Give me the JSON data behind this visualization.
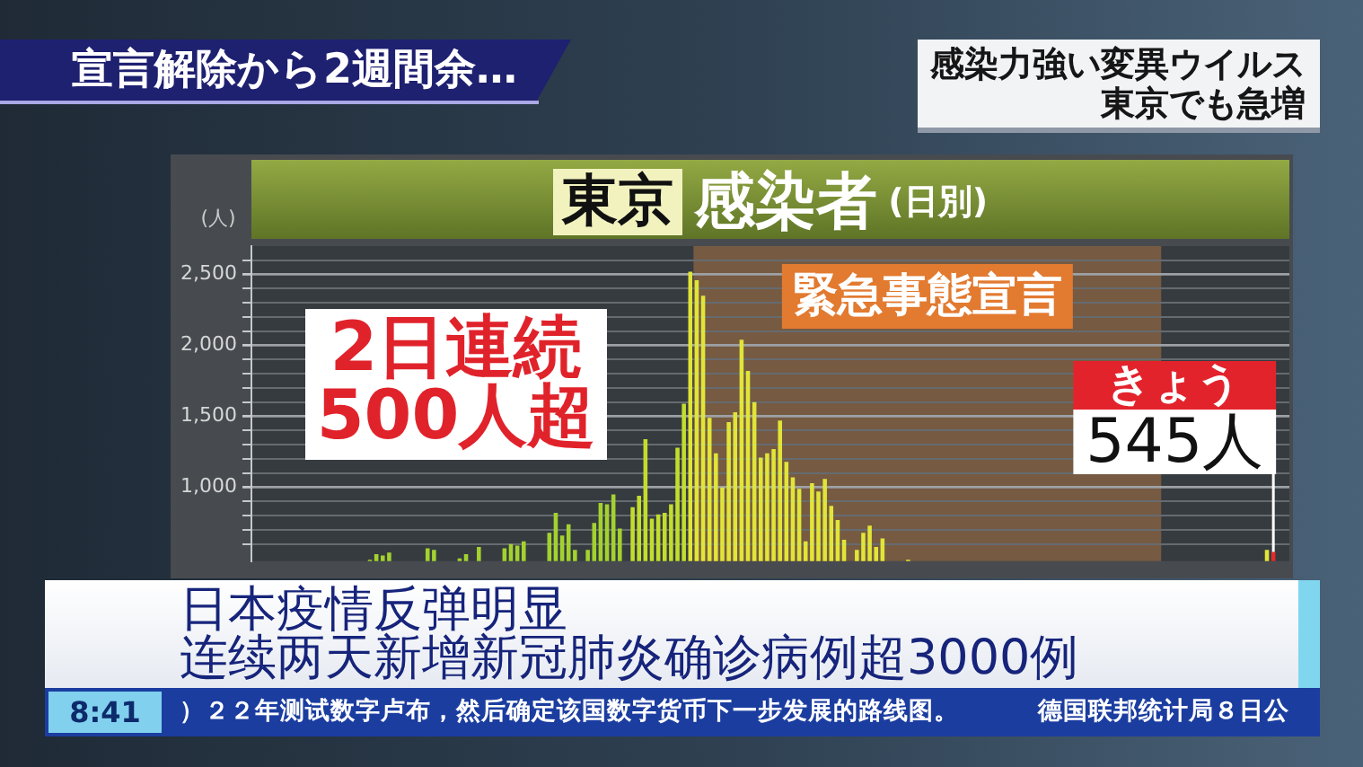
{
  "chart_data": {
    "type": "bar",
    "title": "東京 感染者 (日別)",
    "ylabel": "(人)",
    "categories": [
      null,
      null,
      null,
      null,
      null,
      null,
      null,
      null,
      null,
      null,
      null,
      null,
      null,
      null,
      null,
      null,
      null,
      null,
      null,
      null,
      null,
      null,
      null,
      null,
      null,
      null,
      null,
      null,
      null,
      null,
      null,
      null,
      null,
      null,
      null,
      null,
      null,
      null,
      null,
      null,
      null,
      null,
      null,
      null,
      null,
      null,
      null,
      null,
      null,
      null,
      null,
      null,
      null,
      null,
      null,
      null,
      null,
      null,
      null,
      null,
      null,
      null,
      null,
      null,
      null,
      null,
      null,
      null,
      null,
      null,
      null,
      null,
      null,
      null,
      null,
      null,
      null,
      null,
      null,
      null,
      null,
      null,
      null,
      null,
      null,
      null,
      null,
      null,
      null,
      null,
      null,
      null,
      null,
      null,
      null,
      null,
      null,
      null,
      null,
      null,
      null,
      null,
      null,
      null,
      null,
      null,
      null,
      null,
      null,
      null,
      null,
      null,
      null,
      null,
      null,
      null,
      null,
      null,
      null,
      null,
      null,
      null,
      null,
      null,
      null,
      null,
      null,
      null,
      null,
      null,
      null,
      null,
      null,
      null,
      null,
      null,
      null,
      null,
      null,
      null,
      null,
      null,
      null,
      null,
      null,
      null,
      null,
      null,
      null,
      null,
      null,
      null,
      null,
      null,
      null,
      null,
      null,
      null,
      null,
      null,
      null,
      null
    ],
    "values": [
      null,
      null,
      null,
      null,
      null,
      null,
      null,
      null,
      null,
      null,
      null,
      null,
      null,
      null,
      null,
      null,
      null,
      null,
      490,
      530,
      520,
      540,
      null,
      null,
      null,
      null,
      null,
      570,
      560,
      null,
      null,
      null,
      500,
      530,
      null,
      580,
      null,
      null,
      null,
      570,
      600,
      590,
      620,
      null,
      null,
      null,
      680,
      820,
      660,
      740,
      560,
      null,
      560,
      750,
      890,
      880,
      950,
      710,
      null,
      860,
      940,
      1340,
      780,
      810,
      820,
      880,
      1280,
      1590,
      2520,
      2460,
      2350,
      1490,
      1240,
      1000,
      1460,
      1530,
      2040,
      1820,
      1600,
      1210,
      1240,
      1270,
      1470,
      1180,
      1070,
      990,
      620,
      1030,
      970,
      1060,
      870,
      770,
      630,
      null,
      560,
      680,
      730,
      580,
      640,
      null,
      null,
      null,
      490,
      null,
      null,
      null,
      null,
      null,
      null,
      null,
      null,
      null,
      null,
      null,
      null,
      null,
      null,
      null,
      null,
      null,
      null,
      null,
      null,
      null,
      null,
      null,
      null,
      null,
      null,
      null,
      null,
      null,
      null,
      null,
      null,
      null,
      null,
      null,
      null,
      null,
      null,
      null,
      null,
      null,
      null,
      null,
      null,
      null,
      null,
      null,
      null,
      null,
      null,
      null,
      null,
      null,
      null,
      null,
      560,
      545,
      null,
      null
    ],
    "colors": [
      "#a3d22f",
      "#a3d22f",
      "#a3d22f",
      "#a3d22f",
      "#a3d22f",
      "#a3d22f",
      "#a3d22f",
      "#a3d22f",
      "#a3d22f",
      "#a3d22f",
      "#a3d22f",
      "#a3d22f",
      "#a3d22f",
      "#a3d22f",
      "#a3d22f",
      "#a3d22f",
      "#a3d22f",
      "#a3d22f",
      "#a3d22f",
      "#a3d22f",
      "#a3d22f",
      "#a3d22f",
      "#a3d22f",
      "#a3d22f",
      "#a3d22f",
      "#a3d22f",
      "#a3d22f",
      "#a3d22f",
      "#a3d22f",
      "#a3d22f",
      "#a3d22f",
      "#a3d22f",
      "#a3d22f",
      "#a3d22f",
      "#a3d22f",
      "#a3d22f",
      "#a3d22f",
      "#a3d22f",
      "#a3d22f",
      "#a3d22f",
      "#a3d22f",
      "#a3d22f",
      "#a3d22f",
      "#a3d22f",
      "#a3d22f",
      "#a3d22f",
      "#a3d22f",
      "#a3d22f",
      "#a3d22f",
      "#a3d22f",
      "#a3d22f",
      "#a3d22f",
      "#a3d22f",
      "#a3d22f",
      "#a3d22f",
      "#a3d22f",
      "#a3d22f",
      "#a3d22f",
      "#c3dd2e",
      "#c3dd2e",
      "#c3dd2e",
      "#c3dd2e",
      "#c3dd2e",
      "#c3dd2e",
      "#c3dd2e",
      "#c3dd2e",
      "#c3dd2e",
      "#c3dd2e",
      "#e0e538",
      "#e0e538",
      "#e0e538",
      "#e0e538",
      "#e0e538",
      "#e0e538",
      "#e0e538",
      "#e0e538",
      "#e0e538",
      "#e0e538",
      "#e0e538",
      "#e0e538",
      "#e0e538",
      "#e0e538",
      "#e0e538",
      "#e0e538",
      "#e0e538",
      "#e0e538",
      "#e0e538",
      "#e0e538",
      "#e0e538",
      "#e0e538",
      "#e0e538",
      "#e0e538",
      "#e0e538",
      "#e0e538",
      "#e0e538",
      "#e0e538",
      "#e0e538",
      "#e0e538",
      "#e0e538",
      "#e0e538",
      "#e0e538",
      "#e0e538",
      "#e0e538",
      "#e0e538",
      "#e0e538",
      "#e0e538",
      "#e0e538",
      "#e0e538",
      "#e0e538",
      "#e0e538",
      "#e0e538",
      "#e0e538",
      "#e0e538",
      "#e0e538",
      "#e0e538",
      "#e0e538",
      "#e0e538",
      "#e0e538",
      "#e0e538",
      "#e0e538",
      "#e0e538",
      "#e0e538",
      "#e0e538",
      "#e0e538",
      "#e0e538",
      "#e0e538",
      "#e0e538",
      "#e0e538",
      "#e0e538",
      "#e0e538",
      "#e0e538",
      "#e0e538",
      "#e0e538",
      "#e0e538",
      "#e0e538",
      "#e0e538",
      "#e0e538",
      "#e0e538",
      "#e0e538",
      "#e0e538",
      "#e0e538",
      "#e0e538",
      "#e0e538",
      "#e0e538",
      "#e0e538",
      "#e0e538",
      "#e0e538",
      "#e0e538",
      "#e0e538",
      "#e0e538",
      "#e0e538",
      "#e0e538",
      "#e0e538",
      "#e0e538",
      "#e0e538",
      "#e0e538",
      "#e0e538",
      "#e0e538",
      "#e0e538",
      "#e52a2a",
      "#e0e538",
      "#e0e538"
    ],
    "ylim": [
      480,
      2700
    ],
    "yticks": [
      {
        "value": 600,
        "label": null
      },
      {
        "value": 700,
        "label": null
      },
      {
        "value": 800,
        "label": null
      },
      {
        "value": 900,
        "label": null
      },
      {
        "value": 1000,
        "label": "1,000"
      },
      {
        "value": 1100,
        "label": null
      },
      {
        "value": 1200,
        "label": null
      },
      {
        "value": 1300,
        "label": null
      },
      {
        "value": 1400,
        "label": null
      },
      {
        "value": 1500,
        "label": "1,500"
      },
      {
        "value": 1600,
        "label": null
      },
      {
        "value": 1700,
        "label": null
      },
      {
        "value": 1800,
        "label": null
      },
      {
        "value": 1900,
        "label": null
      },
      {
        "value": 2000,
        "label": "2,000"
      },
      {
        "value": 2100,
        "label": null
      },
      {
        "value": 2200,
        "label": null
      },
      {
        "value": 2300,
        "label": null
      },
      {
        "value": 2400,
        "label": null
      },
      {
        "value": 2500,
        "label": "2,500"
      },
      {
        "value": 2600,
        "label": null
      }
    ],
    "grid": "y",
    "tick_labels": "y",
    "annotations": [
      "2日連続\n500人超",
      "きょう\n545人",
      "緊急事態宣言",
      "宣言解除から2週間余…",
      "感染力強い変異ウイルス",
      "東京でも急増",
      "日本疫情反弹明显",
      "连续两天新增新冠肺炎确诊病例超3000例",
      "8:41",
      "）２２年测试数字卢布，然后确定该国数字货币下一步发展的路线图。",
      "德国联邦统计局８日公"
    ]
  }
}
